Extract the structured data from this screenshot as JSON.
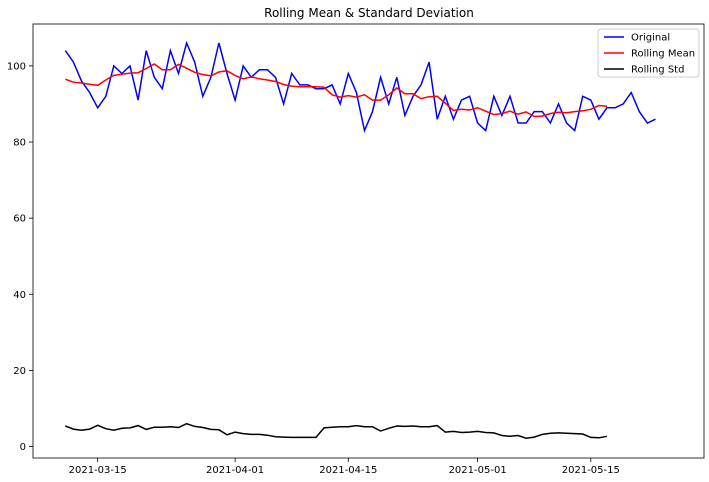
{
  "chart_data": {
    "type": "line",
    "title": "Rolling Mean & Standard Deviation",
    "xlabel": "",
    "ylabel": "",
    "x_start": "2021-03-11",
    "x_ticks": [
      "2021-03-15",
      "2021-04-01",
      "2021-04-15",
      "2021-05-01",
      "2021-05-15"
    ],
    "y_ticks": [
      0,
      20,
      40,
      60,
      80,
      100
    ],
    "xlim": [
      "2021-03-07",
      "2021-05-29"
    ],
    "ylim": [
      -3,
      111
    ],
    "grid": false,
    "legend_position": "top-right",
    "series": [
      {
        "name": "Original",
        "color": "#0000ff",
        "values": [
          104,
          101,
          96,
          93,
          89,
          92,
          100,
          98,
          100,
          91,
          104,
          97,
          94,
          104,
          98,
          106,
          101,
          92,
          97,
          106,
          98,
          91,
          100,
          97,
          99,
          99,
          97,
          90,
          98,
          95,
          95,
          94,
          94,
          95,
          90,
          98,
          93,
          83,
          88,
          97,
          90,
          97,
          87,
          92,
          95,
          101,
          86,
          92,
          86,
          91,
          92,
          85,
          83,
          92,
          87,
          92,
          85,
          85,
          88,
          88,
          85,
          90,
          85,
          83,
          92,
          91,
          86,
          89,
          89,
          90,
          93,
          88,
          85,
          86
        ]
      },
      {
        "name": "Rolling Mean",
        "color": "#ff0000",
        "values": [
          96.5,
          95.7,
          95.5,
          95.2,
          94.9,
          96.3,
          97.5,
          97.8,
          98.1,
          98.2,
          99.3,
          100.5,
          99.0,
          99.0,
          100.4,
          99.4,
          98.3,
          97.7,
          97.4,
          98.4,
          98.7,
          97.5,
          96.6,
          97.1,
          96.6,
          96.3,
          95.9,
          95.1,
          94.7,
          94.5,
          94.5,
          94.5,
          94.4,
          92.4,
          91.8,
          92.2,
          91.8,
          92.4,
          91.0,
          91.0,
          92.4,
          94.2,
          92.7,
          92.7,
          91.4,
          91.9,
          92.0,
          90.2,
          88.3,
          88.6,
          88.4,
          89.0,
          88.1,
          87.2,
          87.5,
          88.1,
          87.3,
          87.9,
          86.7,
          86.8,
          87.5,
          87.8,
          87.7,
          88.0,
          88.2,
          88.6,
          89.6,
          89.4
        ]
      },
      {
        "name": "Rolling Std",
        "color": "#000000",
        "values": [
          5.4,
          4.6,
          4.3,
          4.6,
          5.6,
          4.7,
          4.3,
          4.8,
          4.9,
          5.5,
          4.5,
          5.1,
          5.1,
          5.2,
          5.0,
          6.0,
          5.3,
          5.0,
          4.5,
          4.4,
          3.1,
          3.8,
          3.4,
          3.2,
          3.2,
          3.0,
          2.6,
          2.5,
          2.4,
          2.4,
          2.4,
          2.4,
          4.9,
          5.1,
          5.2,
          5.2,
          5.5,
          5.2,
          5.2,
          4.1,
          4.8,
          5.4,
          5.3,
          5.4,
          5.2,
          5.2,
          5.5,
          3.8,
          4.0,
          3.7,
          3.8,
          4.0,
          3.7,
          3.6,
          2.9,
          2.7,
          2.9,
          2.2,
          2.5,
          3.2,
          3.5,
          3.6,
          3.5,
          3.4,
          3.3,
          2.4,
          2.3,
          2.7
        ]
      }
    ]
  }
}
